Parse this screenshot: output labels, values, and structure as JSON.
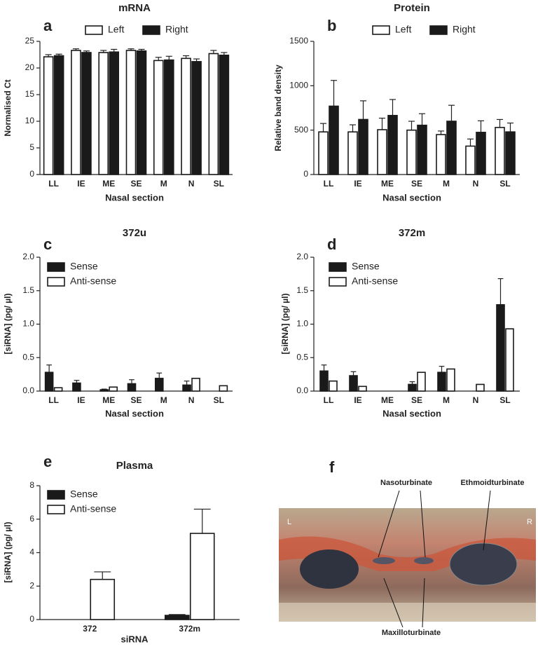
{
  "chart_data": [
    {
      "type": "bar",
      "panel": "a",
      "title": "mRNA",
      "x_label": "Nasal section",
      "y_label": "Normalised Ct",
      "legend": "top",
      "categories": [
        "LL",
        "IE",
        "ME",
        "SE",
        "M",
        "N",
        "SL"
      ],
      "series": [
        {
          "name": "Left",
          "color": "#ffffff",
          "values": [
            22.1,
            23.3,
            22.9,
            23.3,
            21.4,
            21.8,
            22.7
          ],
          "errors": [
            0.4,
            0.3,
            0.4,
            0.3,
            0.6,
            0.5,
            0.6
          ]
        },
        {
          "name": "Right",
          "color": "#1a1a1a",
          "values": [
            22.3,
            22.9,
            23.0,
            23.2,
            21.5,
            21.2,
            22.4
          ],
          "errors": [
            0.3,
            0.3,
            0.5,
            0.3,
            0.7,
            0.5,
            0.5
          ]
        }
      ],
      "ylim": [
        0,
        25
      ],
      "yticks": [
        0,
        5,
        10,
        15,
        20,
        25
      ]
    },
    {
      "type": "bar",
      "panel": "b",
      "title": "Protein",
      "x_label": "Nasal section",
      "y_label": "Relative band density",
      "legend": "top",
      "categories": [
        "LL",
        "IE",
        "ME",
        "SE",
        "M",
        "N",
        "SL"
      ],
      "series": [
        {
          "name": "Left",
          "color": "#ffffff",
          "values": [
            480,
            480,
            505,
            500,
            450,
            320,
            530
          ],
          "errors": [
            95,
            80,
            130,
            100,
            40,
            80,
            90
          ]
        },
        {
          "name": "Right",
          "color": "#1a1a1a",
          "values": [
            770,
            620,
            665,
            555,
            600,
            475,
            480
          ],
          "errors": [
            290,
            210,
            180,
            130,
            180,
            130,
            100
          ]
        }
      ],
      "ylim": [
        0,
        1500
      ],
      "yticks": [
        0,
        500,
        1000,
        1500
      ]
    },
    {
      "type": "bar",
      "panel": "c",
      "title": "372u",
      "x_label": "Nasal section",
      "y_label": "[siRNA] (pg/ µl)",
      "legend": "upper left",
      "categories": [
        "LL",
        "IE",
        "ME",
        "SE",
        "M",
        "N",
        "SL"
      ],
      "series": [
        {
          "name": "Sense",
          "color": "#1a1a1a",
          "values": [
            0.28,
            0.12,
            0.02,
            0.11,
            0.19,
            0.09,
            null
          ],
          "errors": [
            0.11,
            0.04,
            0.01,
            0.06,
            0.08,
            0.06,
            null
          ]
        },
        {
          "name": "Anti-sense",
          "color": "#ffffff",
          "values": [
            0.05,
            null,
            0.06,
            null,
            null,
            0.19,
            0.08
          ]
        }
      ],
      "ylim": [
        0,
        2
      ],
      "yticks": [
        {
          "value": 0,
          "label": "0.0"
        },
        0.5,
        {
          "value": 1,
          "label": "1.0"
        },
        1.5,
        {
          "value": 2,
          "label": "2.0"
        }
      ]
    },
    {
      "type": "bar",
      "panel": "d",
      "title": "372m",
      "x_label": "Nasal section",
      "y_label": "[siRNA] (pg/ µl)",
      "legend": "upper left",
      "categories": [
        "LL",
        "IE",
        "ME",
        "SE",
        "M",
        "N",
        "SL"
      ],
      "series": [
        {
          "name": "Sense",
          "color": "#1a1a1a",
          "values": [
            0.3,
            0.23,
            null,
            0.1,
            0.28,
            null,
            1.29
          ],
          "errors": [
            0.09,
            0.06,
            null,
            0.04,
            0.09,
            null,
            0.39
          ]
        },
        {
          "name": "Anti-sense",
          "color": "#ffffff",
          "values": [
            0.15,
            0.07,
            null,
            0.28,
            0.33,
            0.1,
            0.93
          ]
        }
      ],
      "ylim": [
        0,
        2
      ],
      "yticks": [
        {
          "value": 0,
          "label": "0.0"
        },
        0.5,
        {
          "value": 1,
          "label": "1.0"
        },
        1.5,
        {
          "value": 2,
          "label": "2.0"
        }
      ]
    },
    {
      "type": "bar",
      "panel": "e",
      "title": "Plasma",
      "x_label": "siRNA",
      "y_label": "[siRNA] (pg/ µl)",
      "legend": "upper left",
      "categories": [
        "372",
        "372m"
      ],
      "series": [
        {
          "name": "Sense",
          "color": "#1a1a1a",
          "values": [
            null,
            0.25
          ],
          "errors": [
            null,
            0.05
          ]
        },
        {
          "name": "Anti-sense",
          "color": "#ffffff",
          "values": [
            2.4,
            5.15
          ],
          "errors": [
            0.45,
            1.45
          ]
        }
      ],
      "ylim": [
        0,
        8
      ],
      "yticks": [
        0,
        2,
        4,
        6,
        8
      ]
    }
  ],
  "photo": {
    "panel": "f",
    "labels": {
      "left": "L",
      "right": "R",
      "naso": "Nasoturbinate",
      "ethmoid": "Ethmoidturbinate",
      "maxillo": "Maxilloturbinate"
    }
  }
}
